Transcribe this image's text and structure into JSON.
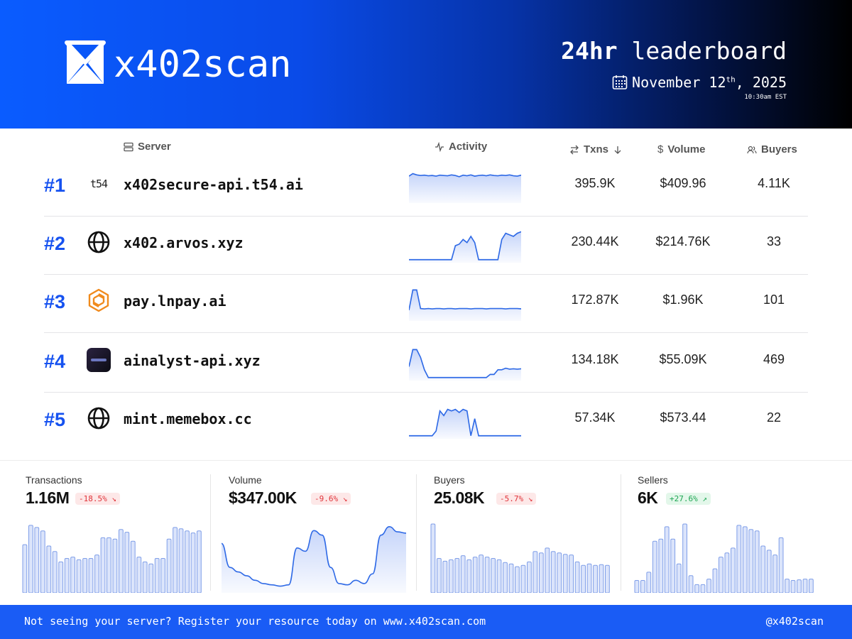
{
  "header": {
    "brand": "x402scan",
    "title_bold": "24hr",
    "title_rest": " leaderboard",
    "date_month_day": "November 12",
    "date_suffix": "th",
    "date_year": ", 2025",
    "time": "10:30am EST"
  },
  "table": {
    "columns": {
      "server": "Server",
      "activity": "Activity",
      "txns": "Txns",
      "volume": "Volume",
      "buyers": "Buyers"
    },
    "rows": [
      {
        "rank": "#1",
        "icon": "t54-logo-icon",
        "icon_text": "t54",
        "server": "x402secure-api.t54.ai",
        "txns": "395.9K",
        "volume": "$409.96",
        "buyers": "4.11K",
        "activity": [
          0.82,
          0.9,
          0.86,
          0.84,
          0.85,
          0.83,
          0.84,
          0.82,
          0.85,
          0.84,
          0.83,
          0.86,
          0.84,
          0.8,
          0.85,
          0.83,
          0.86,
          0.82,
          0.84,
          0.85,
          0.83,
          0.86,
          0.84,
          0.83,
          0.85,
          0.84,
          0.86,
          0.83,
          0.82,
          0.85
        ]
      },
      {
        "rank": "#2",
        "icon": "globe-icon",
        "server": "x402.arvos.xyz",
        "txns": "230.44K",
        "volume": "$214.76K",
        "buyers": "33",
        "activity": [
          0.05,
          0.05,
          0.05,
          0.05,
          0.05,
          0.05,
          0.05,
          0.05,
          0.05,
          0.05,
          0.05,
          0.05,
          0.5,
          0.55,
          0.7,
          0.6,
          0.8,
          0.6,
          0.05,
          0.05,
          0.05,
          0.05,
          0.05,
          0.05,
          0.7,
          0.9,
          0.85,
          0.8,
          0.9,
          0.95
        ]
      },
      {
        "rank": "#3",
        "icon": "lnpay-hex-icon",
        "server": "pay.lnpay.ai",
        "txns": "172.87K",
        "volume": "$1.96K",
        "buyers": "101",
        "activity": [
          0.3,
          0.95,
          0.95,
          0.35,
          0.34,
          0.35,
          0.34,
          0.35,
          0.35,
          0.34,
          0.35,
          0.35,
          0.34,
          0.35,
          0.35,
          0.35,
          0.34,
          0.35,
          0.35,
          0.35,
          0.34,
          0.35,
          0.35,
          0.35,
          0.35,
          0.34,
          0.35,
          0.35,
          0.35,
          0.34
        ]
      },
      {
        "rank": "#4",
        "icon": "ainalyst-app-icon",
        "server": "ainalyst-api.xyz",
        "txns": "134.18K",
        "volume": "$55.09K",
        "buyers": "469",
        "activity": [
          0.4,
          0.95,
          0.95,
          0.7,
          0.3,
          0.05,
          0.05,
          0.05,
          0.05,
          0.05,
          0.05,
          0.05,
          0.05,
          0.05,
          0.05,
          0.05,
          0.05,
          0.05,
          0.05,
          0.05,
          0.05,
          0.15,
          0.15,
          0.3,
          0.3,
          0.35,
          0.32,
          0.33,
          0.32,
          0.33
        ]
      },
      {
        "rank": "#5",
        "icon": "globe-icon",
        "server": "mint.memebox.cc",
        "txns": "57.34K",
        "volume": "$573.44",
        "buyers": "22",
        "activity": [
          0.05,
          0.05,
          0.05,
          0.05,
          0.05,
          0.05,
          0.05,
          0.2,
          0.85,
          0.7,
          0.9,
          0.85,
          0.9,
          0.8,
          0.9,
          0.85,
          0.05,
          0.6,
          0.05,
          0.05,
          0.05,
          0.05,
          0.05,
          0.05,
          0.05,
          0.05,
          0.05,
          0.05,
          0.05,
          0.05
        ]
      }
    ]
  },
  "stats": [
    {
      "label": "Transactions",
      "value": "1.16M",
      "change": "-18.5%",
      "trend": "down",
      "chart": "bar",
      "series": [
        0.7,
        0.98,
        0.95,
        0.9,
        0.68,
        0.6,
        0.45,
        0.5,
        0.52,
        0.48,
        0.5,
        0.5,
        0.55,
        0.8,
        0.8,
        0.78,
        0.92,
        0.88,
        0.75,
        0.52,
        0.45,
        0.42,
        0.5,
        0.5,
        0.78,
        0.95,
        0.93,
        0.9,
        0.87,
        0.9
      ]
    },
    {
      "label": "Volume",
      "value": "$347.00K",
      "change": "-9.6%",
      "trend": "down",
      "chart": "area",
      "series": [
        0.72,
        0.35,
        0.28,
        0.22,
        0.15,
        0.1,
        0.08,
        0.06,
        0.08,
        0.65,
        0.6,
        0.92,
        0.85,
        0.35,
        0.1,
        0.08,
        0.15,
        0.1,
        0.25,
        0.85,
        0.98,
        0.9,
        0.88
      ]
    },
    {
      "label": "Buyers",
      "value": "25.08K",
      "change": "-5.7%",
      "trend": "down",
      "chart": "bar",
      "series": [
        1.0,
        0.5,
        0.46,
        0.48,
        0.5,
        0.54,
        0.48,
        0.52,
        0.55,
        0.52,
        0.5,
        0.48,
        0.44,
        0.42,
        0.38,
        0.4,
        0.45,
        0.6,
        0.58,
        0.65,
        0.6,
        0.58,
        0.56,
        0.55,
        0.45,
        0.4,
        0.42,
        0.4,
        0.41,
        0.4
      ]
    },
    {
      "label": "Sellers",
      "value": "6K",
      "change": "+27.6%",
      "trend": "up",
      "chart": "bar",
      "series": [
        0.18,
        0.18,
        0.3,
        0.75,
        0.78,
        0.96,
        0.78,
        0.42,
        1.0,
        0.25,
        0.12,
        0.12,
        0.2,
        0.35,
        0.52,
        0.58,
        0.65,
        0.98,
        0.96,
        0.92,
        0.9,
        0.68,
        0.62,
        0.55,
        0.8,
        0.2,
        0.18,
        0.19,
        0.2,
        0.2
      ]
    }
  ],
  "footer": {
    "text": "Not seeing your server? Register your resource today on www.x402scan.com",
    "handle": "@x402scan"
  },
  "colors": {
    "accent": "#1652f0",
    "header_start": "#0a5cff",
    "header_end": "#000000",
    "footer": "#1a5cf5",
    "spark_line": "#2f6ae6",
    "neg": "#e0343a",
    "pos": "#1ea653"
  }
}
